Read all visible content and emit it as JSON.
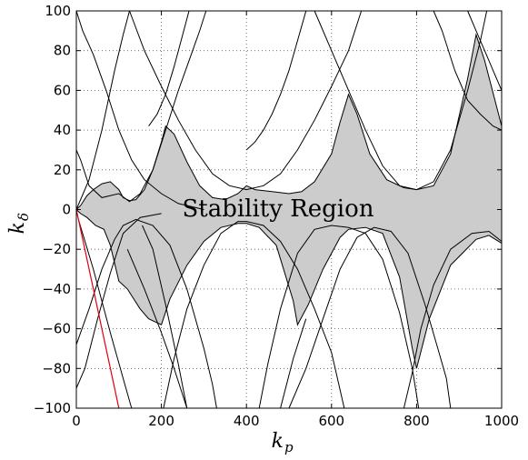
{
  "chart_data": {
    "type": "line",
    "xlabel": "k",
    "xlabel_sub": "p",
    "ylabel": "k",
    "ylabel_sub": "δ",
    "xlim": [
      0,
      1000
    ],
    "ylim": [
      -100,
      100
    ],
    "grid": true,
    "x_ticks": [
      0,
      200,
      400,
      600,
      800,
      1000
    ],
    "y_ticks": [
      100,
      80,
      60,
      40,
      20,
      0,
      -20,
      -40,
      -60,
      -80,
      -100
    ],
    "x_tick_labels": [
      "0",
      "200",
      "400",
      "600",
      "800",
      "1000"
    ],
    "y_tick_labels": [
      "100",
      "80",
      "60",
      "40",
      "20",
      "0",
      "−20",
      "−40",
      "−60",
      "−80",
      "−100"
    ],
    "annotation": "Stability Region",
    "region_fill_color": "#cccccc",
    "curve_color": "#000000",
    "red_line_color": "#e0000f",
    "upper_boundary": [
      [
        0,
        0
      ],
      [
        10,
        2
      ],
      [
        25,
        7
      ],
      [
        40,
        10
      ],
      [
        60,
        13
      ],
      [
        80,
        14
      ],
      [
        100,
        10
      ],
      [
        110,
        6
      ],
      [
        125,
        4.5
      ],
      [
        140,
        5
      ],
      [
        160,
        10
      ],
      [
        180,
        20
      ],
      [
        200,
        34
      ],
      [
        210,
        42
      ],
      [
        230,
        38
      ],
      [
        260,
        24
      ],
      [
        290,
        12
      ],
      [
        320,
        6
      ],
      [
        350,
        5
      ],
      [
        380,
        8
      ],
      [
        400,
        12
      ],
      [
        420,
        10
      ],
      [
        460,
        9
      ],
      [
        500,
        8
      ],
      [
        530,
        9
      ],
      [
        560,
        14
      ],
      [
        600,
        28
      ],
      [
        620,
        44
      ],
      [
        640,
        58
      ],
      [
        660,
        48
      ],
      [
        690,
        28
      ],
      [
        730,
        15
      ],
      [
        770,
        11
      ],
      [
        800,
        10
      ],
      [
        840,
        12
      ],
      [
        880,
        28
      ],
      [
        920,
        66
      ],
      [
        940,
        88
      ],
      [
        960,
        75
      ],
      [
        1000,
        42
      ]
    ],
    "lower_boundary": [
      [
        0,
        0
      ],
      [
        10,
        -2
      ],
      [
        25,
        -4
      ],
      [
        45,
        -8
      ],
      [
        65,
        -10
      ],
      [
        80,
        -18
      ],
      [
        100,
        -36
      ],
      [
        120,
        -40
      ],
      [
        150,
        -50
      ],
      [
        170,
        -55
      ],
      [
        200,
        -58
      ],
      [
        220,
        -45
      ],
      [
        260,
        -28
      ],
      [
        300,
        -16
      ],
      [
        340,
        -9
      ],
      [
        380,
        -7
      ],
      [
        400,
        -7
      ],
      [
        430,
        -9
      ],
      [
        470,
        -18
      ],
      [
        510,
        -46
      ],
      [
        520,
        -58
      ],
      [
        545,
        -48
      ],
      [
        580,
        -30
      ],
      [
        620,
        -14
      ],
      [
        640,
        -10
      ],
      [
        680,
        -9
      ],
      [
        720,
        -12
      ],
      [
        760,
        -34
      ],
      [
        790,
        -70
      ],
      [
        800,
        -80
      ],
      [
        830,
        -55
      ],
      [
        880,
        -28
      ],
      [
        940,
        -15
      ],
      [
        970,
        -13
      ],
      [
        1000,
        -17
      ]
    ],
    "curves": [
      {
        "points": [
          [
            0,
            30
          ],
          [
            10,
            25
          ],
          [
            30,
            12
          ],
          [
            60,
            6
          ],
          [
            100,
            8
          ],
          [
            125,
            4
          ],
          [
            150,
            8
          ],
          [
            180,
            20
          ],
          [
            210,
            40
          ],
          [
            240,
            60
          ],
          [
            270,
            78
          ],
          [
            290,
            90
          ],
          [
            305,
            100
          ]
        ]
      },
      {
        "points": [
          [
            0,
            0
          ],
          [
            30,
            15
          ],
          [
            60,
            40
          ],
          [
            90,
            70
          ],
          [
            110,
            88
          ],
          [
            125,
            100
          ]
        ]
      },
      {
        "points": [
          [
            0,
            -68
          ],
          [
            30,
            -50
          ],
          [
            60,
            -30
          ],
          [
            90,
            -15
          ],
          [
            110,
            -8
          ],
          [
            140,
            -5
          ],
          [
            180,
            -8
          ],
          [
            220,
            -18
          ],
          [
            260,
            -40
          ],
          [
            300,
            -70
          ],
          [
            320,
            -88
          ],
          [
            330,
            -100
          ]
        ]
      },
      {
        "points": [
          [
            0,
            -90
          ],
          [
            20,
            -80
          ],
          [
            50,
            -55
          ],
          [
            80,
            -32
          ],
          [
            110,
            -12
          ],
          [
            150,
            -4
          ],
          [
            200,
            -2
          ]
        ]
      },
      {
        "points": [
          [
            5,
            -5
          ],
          [
            40,
            -30
          ],
          [
            80,
            -62
          ],
          [
            110,
            -85
          ],
          [
            130,
            -100
          ]
        ]
      },
      {
        "points": [
          [
            0,
            100
          ],
          [
            15,
            90
          ],
          [
            40,
            78
          ],
          [
            70,
            60
          ],
          [
            100,
            40
          ],
          [
            130,
            25
          ],
          [
            160,
            15
          ],
          [
            200,
            8
          ],
          [
            240,
            3
          ],
          [
            300,
            0
          ]
        ]
      },
      {
        "points": [
          [
            125,
            100
          ],
          [
            160,
            80
          ],
          [
            200,
            62
          ],
          [
            240,
            45
          ],
          [
            280,
            30
          ],
          [
            320,
            18
          ],
          [
            360,
            12
          ],
          [
            400,
            10
          ],
          [
            440,
            12
          ],
          [
            480,
            18
          ],
          [
            520,
            30
          ],
          [
            560,
            45
          ],
          [
            600,
            62
          ],
          [
            640,
            80
          ],
          [
            670,
            100
          ]
        ]
      },
      {
        "points": [
          [
            155,
            -8
          ],
          [
            180,
            -20
          ],
          [
            210,
            -48
          ],
          [
            240,
            -78
          ],
          [
            260,
            -100
          ]
        ]
      },
      {
        "points": [
          [
            205,
            -100
          ],
          [
            230,
            -75
          ],
          [
            260,
            -50
          ],
          [
            300,
            -28
          ],
          [
            340,
            -12
          ],
          [
            380,
            -6
          ],
          [
            400,
            -6
          ],
          [
            440,
            -8
          ],
          [
            480,
            -16
          ],
          [
            520,
            -30
          ],
          [
            560,
            -50
          ],
          [
            600,
            -72
          ],
          [
            630,
            -100
          ]
        ]
      },
      {
        "points": [
          [
            120,
            -20
          ],
          [
            160,
            -40
          ],
          [
            200,
            -62
          ],
          [
            230,
            -80
          ],
          [
            260,
            -100
          ]
        ]
      },
      {
        "points": [
          [
            430,
            -100
          ],
          [
            450,
            -78
          ],
          [
            480,
            -50
          ],
          [
            520,
            -22
          ],
          [
            560,
            -10
          ],
          [
            600,
            -8
          ],
          [
            640,
            -9
          ],
          [
            680,
            -12
          ],
          [
            720,
            -25
          ],
          [
            760,
            -52
          ],
          [
            790,
            -80
          ],
          [
            805,
            -100
          ]
        ]
      },
      {
        "points": [
          [
            500,
            -100
          ],
          [
            540,
            -80
          ],
          [
            580,
            -55
          ],
          [
            620,
            -30
          ],
          [
            660,
            -14
          ],
          [
            700,
            -9
          ],
          [
            740,
            -11
          ],
          [
            780,
            -22
          ],
          [
            820,
            -48
          ],
          [
            850,
            -70
          ],
          [
            870,
            -85
          ],
          [
            880,
            -100
          ]
        ]
      },
      {
        "points": [
          [
            480,
            -100
          ],
          [
            510,
            -75
          ],
          [
            540,
            -55
          ]
        ]
      },
      {
        "points": [
          [
            560,
            100
          ],
          [
            600,
            80
          ],
          [
            640,
            60
          ],
          [
            680,
            40
          ],
          [
            720,
            22
          ],
          [
            760,
            12
          ],
          [
            800,
            10
          ],
          [
            840,
            14
          ],
          [
            880,
            30
          ],
          [
            920,
            60
          ],
          [
            950,
            85
          ],
          [
            965,
            100
          ]
        ]
      },
      {
        "points": [
          [
            770,
            -100
          ],
          [
            790,
            -82
          ],
          [
            810,
            -60
          ],
          [
            840,
            -38
          ],
          [
            880,
            -20
          ],
          [
            930,
            -12
          ],
          [
            970,
            -11
          ],
          [
            1000,
            -16
          ]
        ]
      },
      {
        "points": [
          [
            840,
            100
          ],
          [
            860,
            90
          ],
          [
            890,
            70
          ],
          [
            920,
            55
          ],
          [
            950,
            48
          ],
          [
            980,
            42
          ],
          [
            1000,
            40
          ]
        ]
      },
      {
        "points": [
          [
            920,
            100
          ],
          [
            940,
            90
          ],
          [
            960,
            80
          ],
          [
            980,
            70
          ],
          [
            1000,
            60
          ]
        ]
      },
      {
        "points": [
          [
            540,
            100
          ],
          [
            520,
            85
          ],
          [
            500,
            70
          ],
          [
            480,
            58
          ],
          [
            460,
            48
          ],
          [
            440,
            40
          ],
          [
            420,
            34
          ],
          [
            400,
            30
          ]
        ]
      },
      {
        "points": [
          [
            265,
            100
          ],
          [
            250,
            88
          ],
          [
            230,
            72
          ],
          [
            210,
            58
          ],
          [
            190,
            48
          ],
          [
            170,
            42
          ]
        ]
      }
    ],
    "red_line": [
      [
        0,
        0
      ],
      [
        100,
        -100
      ]
    ]
  }
}
